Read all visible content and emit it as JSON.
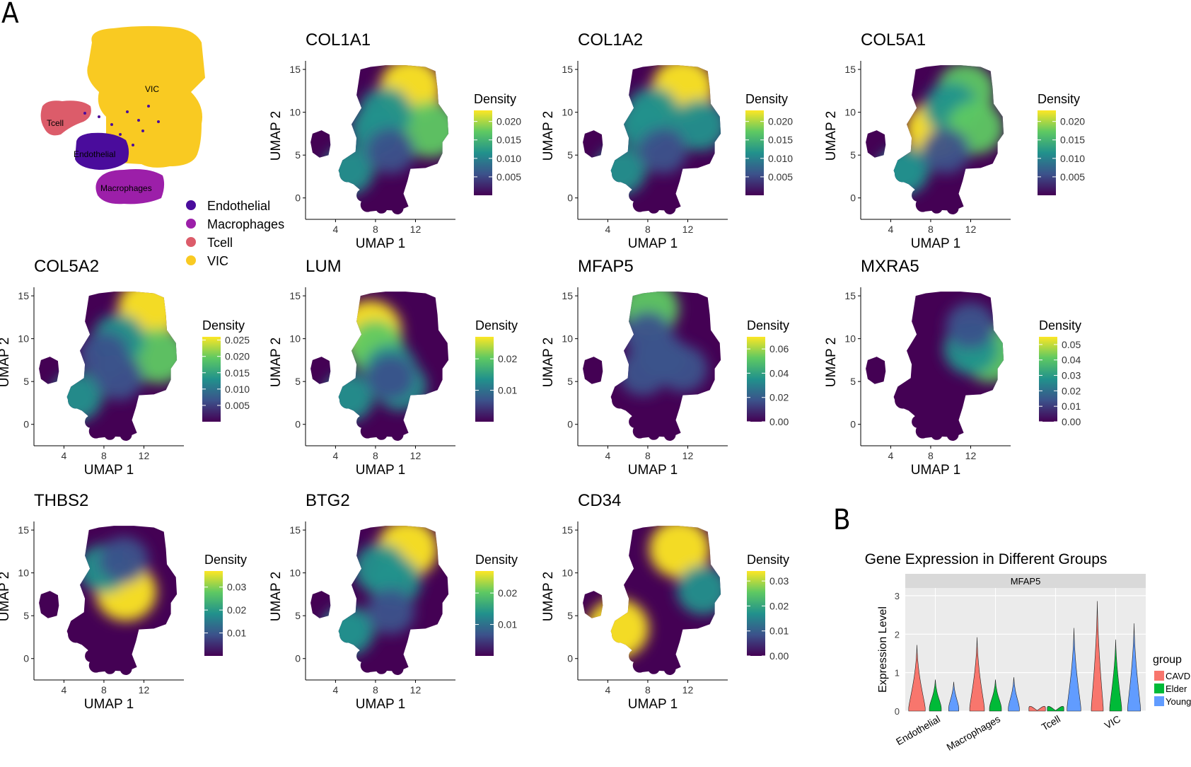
{
  "panel_labels": {
    "a": "A",
    "b": "B"
  },
  "colors": {
    "Endothelial": "#4a0c9c",
    "Macrophages": "#9c1fa9",
    "Tcell": "#dc5c6a",
    "VIC": "#f9ca22",
    "CAVD": "#f8766d",
    "Elder": "#00ba38",
    "Young": "#619cff",
    "viridis": [
      "#440154",
      "#3b528b",
      "#21918c",
      "#5ec962",
      "#fde725"
    ]
  },
  "chart_data": [
    {
      "type": "scatter",
      "id": "celltypes",
      "title": "",
      "legend": [
        "Endothelial",
        "Macrophages",
        "Tcell",
        "VIC"
      ],
      "cluster_labels": [
        "VIC",
        "Tcell",
        "Endothelial",
        "Macrophages"
      ]
    },
    {
      "type": "heatmap",
      "title": "COL1A1",
      "xlabel": "UMAP 1",
      "ylabel": "UMAP 2",
      "xticks": [
        4,
        8,
        12
      ],
      "yticks": [
        0,
        5,
        10,
        15
      ],
      "xlim": [
        1,
        16
      ],
      "ylim": [
        -2.5,
        16
      ],
      "legend_title": "Density",
      "legend_ticks": [
        "0.020",
        "0.015",
        "0.010",
        "0.005"
      ],
      "legend_tick_values": [
        0.02,
        0.015,
        0.01,
        0.005
      ],
      "scale_max": 0.023,
      "hotspots": [
        [
          11.5,
          12.8,
          1.0
        ],
        [
          13.5,
          8,
          0.85
        ],
        [
          9,
          10,
          0.55
        ],
        [
          8,
          8,
          0.45
        ]
      ]
    },
    {
      "type": "heatmap",
      "title": "COL1A2",
      "xlabel": "UMAP 1",
      "ylabel": "UMAP 2",
      "xticks": [
        4,
        8,
        12
      ],
      "yticks": [
        0,
        5,
        10,
        15
      ],
      "xlim": [
        1,
        16
      ],
      "ylim": [
        -2.5,
        16
      ],
      "legend_title": "Density",
      "legend_ticks": [
        "0.020",
        "0.015",
        "0.010",
        "0.005"
      ],
      "legend_tick_values": [
        0.02,
        0.015,
        0.01,
        0.005
      ],
      "scale_max": 0.023,
      "hotspots": [
        [
          11.5,
          12.8,
          1.0
        ],
        [
          13.2,
          8.5,
          0.6
        ],
        [
          8.5,
          10,
          0.55
        ],
        [
          7.5,
          8.5,
          0.45
        ]
      ]
    },
    {
      "type": "heatmap",
      "title": "COL5A1",
      "xlabel": "UMAP 1",
      "ylabel": "UMAP 2",
      "xticks": [
        4,
        8,
        12
      ],
      "yticks": [
        0,
        5,
        10,
        15
      ],
      "xlim": [
        1,
        16
      ],
      "ylim": [
        -2.5,
        16
      ],
      "legend_title": "Density",
      "legend_ticks": [
        "0.020",
        "0.015",
        "0.010",
        "0.005"
      ],
      "legend_tick_values": [
        0.02,
        0.015,
        0.01,
        0.005
      ],
      "scale_max": 0.023,
      "hotspots": [
        [
          8.5,
          8,
          0.9
        ],
        [
          11.5,
          12.5,
          0.8
        ],
        [
          10,
          10.5,
          0.6
        ],
        [
          12.5,
          8.2,
          0.7
        ],
        [
          5,
          3,
          0.4
        ]
      ]
    },
    {
      "type": "heatmap",
      "title": "COL5A2",
      "xlabel": "UMAP 1",
      "ylabel": "UMAP 2",
      "xticks": [
        4,
        8,
        12
      ],
      "yticks": [
        0,
        5,
        10,
        15
      ],
      "xlim": [
        1,
        16
      ],
      "ylim": [
        -2.5,
        16
      ],
      "legend_title": "Density",
      "legend_ticks": [
        "0.025",
        "0.020",
        "0.015",
        "0.010",
        "0.005"
      ],
      "legend_tick_values": [
        0.025,
        0.02,
        0.015,
        0.01,
        0.005
      ],
      "scale_max": 0.026,
      "hotspots": [
        [
          12.5,
          13.5,
          1.0
        ],
        [
          13.5,
          8,
          0.8
        ],
        [
          9.5,
          10,
          0.5
        ],
        [
          8,
          8,
          0.4
        ]
      ]
    },
    {
      "type": "heatmap",
      "title": "LUM",
      "xlabel": "UMAP 1",
      "ylabel": "UMAP 2",
      "xticks": [
        4,
        8,
        12
      ],
      "yticks": [
        0,
        5,
        10,
        15
      ],
      "xlim": [
        1,
        16
      ],
      "ylim": [
        -2.5,
        16
      ],
      "legend_title": "Density",
      "legend_ticks": [
        "0.02",
        "0.01"
      ],
      "legend_tick_values": [
        0.02,
        0.01
      ],
      "scale_max": 0.027,
      "hotspots": [
        [
          7.5,
          11,
          1.0
        ],
        [
          8,
          9,
          0.75
        ],
        [
          9.5,
          6.5,
          0.5
        ],
        [
          10.5,
          4.5,
          0.5
        ]
      ]
    },
    {
      "type": "heatmap",
      "title": "MFAP5",
      "xlabel": "UMAP 1",
      "ylabel": "UMAP 2",
      "xticks": [
        4,
        8,
        12
      ],
      "yticks": [
        0,
        5,
        10,
        15
      ],
      "xlim": [
        1,
        16
      ],
      "ylim": [
        -2.5,
        16
      ],
      "legend_title": "Density",
      "legend_ticks": [
        "0.06",
        "0.04",
        "0.02",
        "0.00"
      ],
      "legend_tick_values": [
        0.06,
        0.04,
        0.02,
        0.0
      ],
      "scale_max": 0.07,
      "hotspots": [
        [
          8.2,
          13.5,
          0.8
        ],
        [
          8,
          10.5,
          0.35
        ],
        [
          9.5,
          8,
          0.3
        ],
        [
          11.5,
          6.5,
          0.35
        ],
        [
          7.5,
          6,
          0.3
        ]
      ]
    },
    {
      "type": "heatmap",
      "title": "MXRA5",
      "xlabel": "UMAP 1",
      "ylabel": "UMAP 2",
      "xticks": [
        4,
        8,
        12
      ],
      "yticks": [
        0,
        5,
        10,
        15
      ],
      "xlim": [
        1,
        16
      ],
      "ylim": [
        -2.5,
        16
      ],
      "legend_title": "Density",
      "legend_ticks": [
        "0.05",
        "0.04",
        "0.03",
        "0.02",
        "0.01",
        "0.00"
      ],
      "legend_tick_values": [
        0.05,
        0.04,
        0.03,
        0.02,
        0.01,
        0.0
      ],
      "scale_max": 0.055,
      "hotspots": [
        [
          14,
          8.2,
          0.85
        ],
        [
          12,
          8.8,
          0.6
        ],
        [
          12,
          11.5,
          0.35
        ]
      ]
    },
    {
      "type": "heatmap",
      "title": "THBS2",
      "xlabel": "UMAP 1",
      "ylabel": "UMAP 2",
      "xticks": [
        4,
        8,
        12
      ],
      "yticks": [
        0,
        5,
        10,
        15
      ],
      "xlim": [
        1,
        16
      ],
      "ylim": [
        -2.5,
        16
      ],
      "legend_title": "Density",
      "legend_ticks": [
        "0.03",
        "0.02",
        "0.01"
      ],
      "legend_tick_values": [
        0.03,
        0.02,
        0.01
      ],
      "scale_max": 0.037,
      "hotspots": [
        [
          10.2,
          7.8,
          0.95
        ],
        [
          8,
          10.5,
          0.45
        ],
        [
          10,
          11.5,
          0.35
        ]
      ]
    },
    {
      "type": "heatmap",
      "title": "BTG2",
      "xlabel": "UMAP 1",
      "ylabel": "UMAP 2",
      "xticks": [
        4,
        8,
        12
      ],
      "yticks": [
        0,
        5,
        10,
        15
      ],
      "xlim": [
        1,
        16
      ],
      "ylim": [
        -2.5,
        16
      ],
      "legend_title": "Density",
      "legend_ticks": [
        "0.02",
        "0.01"
      ],
      "legend_tick_values": [
        0.02,
        0.01
      ],
      "scale_max": 0.027,
      "hotspots": [
        [
          11.2,
          12.8,
          0.95
        ],
        [
          8.5,
          10.5,
          0.55
        ],
        [
          10,
          9,
          0.45
        ],
        [
          5,
          3.5,
          0.3
        ]
      ]
    },
    {
      "type": "heatmap",
      "title": "CD34",
      "xlabel": "UMAP 1",
      "ylabel": "UMAP 2",
      "xticks": [
        4,
        8,
        12
      ],
      "yticks": [
        0,
        5,
        10,
        15
      ],
      "xlim": [
        1,
        16
      ],
      "ylim": [
        -2.5,
        16
      ],
      "legend_title": "Density",
      "legend_ticks": [
        "0.03",
        "0.02",
        "0.01",
        "0.00"
      ],
      "legend_tick_values": [
        0.03,
        0.02,
        0.01,
        0.0
      ],
      "scale_max": 0.034,
      "hotspots": [
        [
          11.2,
          12.8,
          0.95
        ],
        [
          5,
          3.5,
          1.0
        ],
        [
          13.5,
          8,
          0.5
        ]
      ]
    },
    {
      "type": "violin",
      "title": "Gene Expression in Different Groups",
      "facet": "MFAP5",
      "ylabel": "Expression Level",
      "yticks": [
        0,
        1,
        2,
        3
      ],
      "ylim": [
        0,
        3.2
      ],
      "categories": [
        "Endothelial",
        "Macrophages",
        "Tcell",
        "VIC"
      ],
      "legend_title": "group",
      "groups": [
        "CAVD",
        "Elder",
        "Young"
      ],
      "violins": [
        {
          "category": "Endothelial",
          "group": "CAVD",
          "max": 1.72,
          "width": 0.9
        },
        {
          "category": "Endothelial",
          "group": "Elder",
          "max": 0.82,
          "width": 0.65
        },
        {
          "category": "Endothelial",
          "group": "Young",
          "max": 0.76,
          "width": 0.55
        },
        {
          "category": "Macrophages",
          "group": "CAVD",
          "max": 1.92,
          "width": 0.8
        },
        {
          "category": "Macrophages",
          "group": "Elder",
          "max": 0.82,
          "width": 0.65
        },
        {
          "category": "Macrophages",
          "group": "Young",
          "max": 0.88,
          "width": 0.6
        },
        {
          "category": "Tcell",
          "group": "CAVD",
          "max": 0.02,
          "width": 0.9
        },
        {
          "category": "Tcell",
          "group": "Elder",
          "max": 0.02,
          "width": 0.9
        },
        {
          "category": "Tcell",
          "group": "Young",
          "max": 2.16,
          "width": 0.75
        },
        {
          "category": "VIC",
          "group": "CAVD",
          "max": 2.86,
          "width": 0.65
        },
        {
          "category": "VIC",
          "group": "Elder",
          "max": 1.86,
          "width": 0.65
        },
        {
          "category": "VIC",
          "group": "Young",
          "max": 2.28,
          "width": 0.7
        }
      ]
    }
  ]
}
